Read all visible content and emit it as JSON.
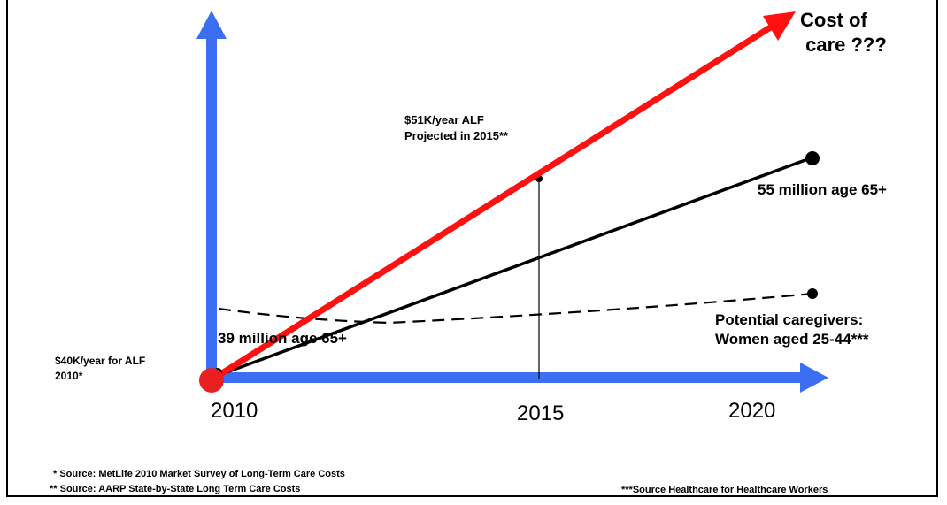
{
  "years": [
    "2010",
    "2015",
    "2020"
  ],
  "labels": {
    "cost_title": "Cost of\n care ???",
    "alf_2015": "$51K/year ALF\nProjected in 2015**",
    "million_55": "55 million age 65+",
    "million_39": "39 million age 65+",
    "alf_2010": "$40K/year for ALF\n2010*",
    "caregivers": "Potential caregivers:\nWomen aged 25-44***"
  },
  "sources": {
    "s1": "* Source: MetLife 2010 Market Survey of Long-Term Care Costs",
    "s2": "** Source: AARP State-by-State Long Term Care Costs",
    "s3": "***Source Healthcare for Healthcare Workers"
  },
  "colors": {
    "axis": "#3b6ef0",
    "cost_line": "#ff1111",
    "origin_dot": "#e82020",
    "trend_line": "#000000"
  }
}
